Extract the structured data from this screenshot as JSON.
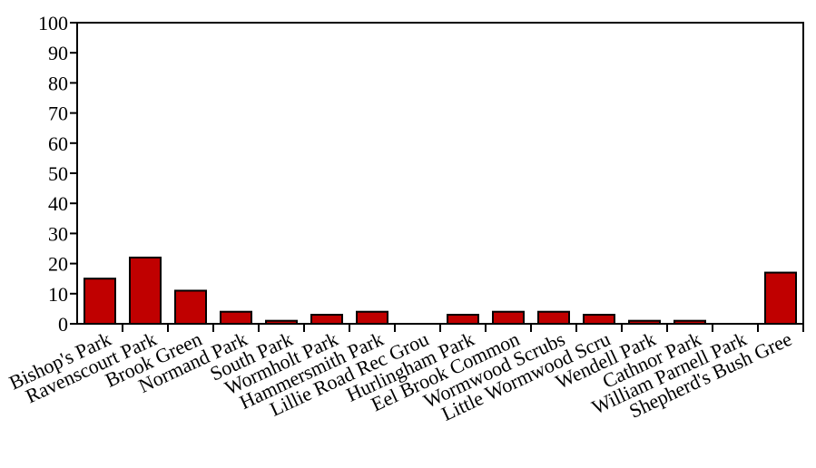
{
  "chart_data": {
    "type": "bar",
    "title": "",
    "xlabel": "",
    "ylabel": "",
    "ylim": [
      0,
      100
    ],
    "yticks": [
      0,
      10,
      20,
      30,
      40,
      50,
      60,
      70,
      80,
      90,
      100
    ],
    "grid": false,
    "legend": "none",
    "bar_color": "#c00000",
    "categories": [
      "Bishop's Park",
      "Ravenscourt Park",
      "Brook Green",
      "Normand Park",
      "South Park",
      "Wormholt Park",
      "Hammersmith Park",
      "Lillie Road Rec Grou",
      "Hurlingham Park",
      "Eel Brook Common",
      "Wormwood Scrubs",
      "Little Wormwood Scru",
      "Wendell Park",
      "Cathnor Park",
      "William Parnell Park",
      "Shepherd's Bush Gree"
    ],
    "values": [
      15,
      22,
      11,
      4,
      1,
      3,
      4,
      0,
      3,
      4,
      4,
      3,
      1,
      1,
      0,
      17
    ]
  }
}
